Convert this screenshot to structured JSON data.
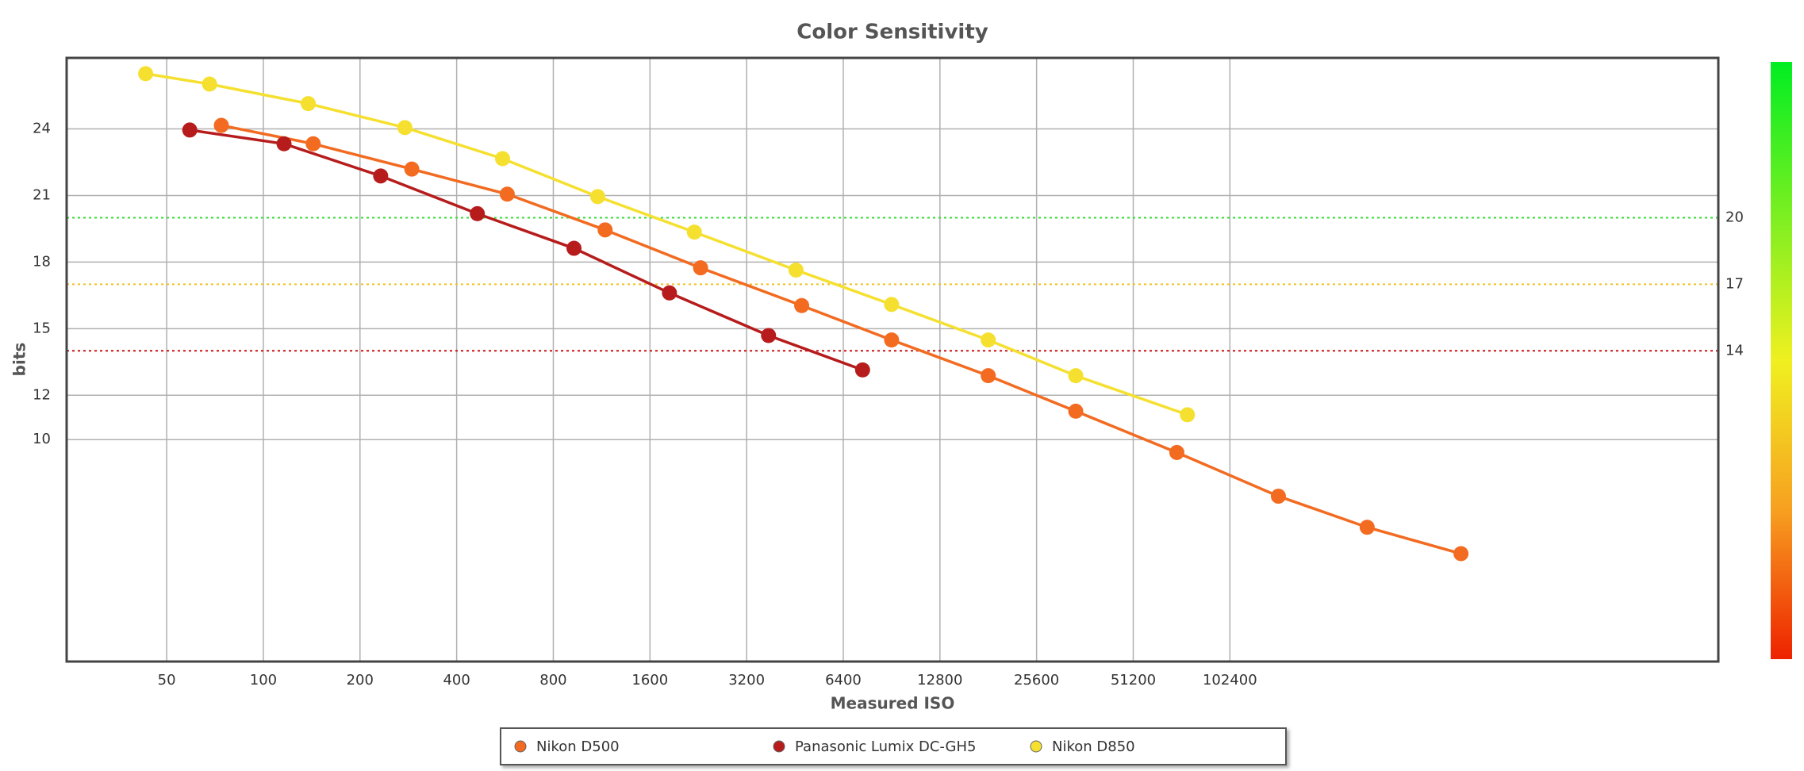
{
  "chart_data": {
    "type": "line",
    "title": "Color Sensitivity",
    "x_label": "Measured ISO",
    "y_label": "bits",
    "x_scale": "log",
    "grid": true,
    "xlim": [
      24.4,
      3400000
    ],
    "ylim": [
      0,
      27.2
    ],
    "xticks": [
      50,
      100,
      200,
      400,
      800,
      1600,
      3200,
      6400,
      12800,
      25600,
      51200,
      102400
    ],
    "yticks": [
      10,
      12,
      15,
      18,
      21,
      24
    ],
    "reference_lines": [
      {
        "value": 20,
        "color": "#33dd33"
      },
      {
        "value": 17,
        "color": "#f0c020"
      },
      {
        "value": 14,
        "color": "#cc1111"
      }
    ],
    "series": [
      {
        "name": "Nikon D500",
        "color": "#f26b21",
        "x": [
          74,
          143,
          290,
          575,
          1160,
          2300,
          4750,
          9050,
          18100,
          33900,
          70000,
          145000,
          274000,
          537000
        ],
        "values": [
          24.16,
          23.33,
          22.19,
          21.06,
          19.45,
          17.74,
          16.04,
          14.49,
          12.88,
          11.28,
          9.42,
          7.45,
          6.05,
          4.86
        ]
      },
      {
        "name": "Panasonic Lumix DC-GH5",
        "color": "#b71c1c",
        "x": [
          59,
          116,
          232,
          464,
          928,
          1840,
          3745,
          7350
        ],
        "values": [
          23.95,
          23.33,
          21.88,
          20.18,
          18.62,
          16.61,
          14.69,
          13.14
        ]
      },
      {
        "name": "Nikon D850",
        "color": "#f5e030",
        "x": [
          43,
          68,
          138,
          276,
          556,
          1100,
          2200,
          4560,
          9050,
          18100,
          33900,
          75500
        ],
        "values": [
          26.49,
          26.02,
          25.14,
          24.06,
          22.66,
          20.95,
          19.35,
          17.64,
          16.09,
          14.49,
          12.88,
          11.12
        ]
      }
    ]
  }
}
